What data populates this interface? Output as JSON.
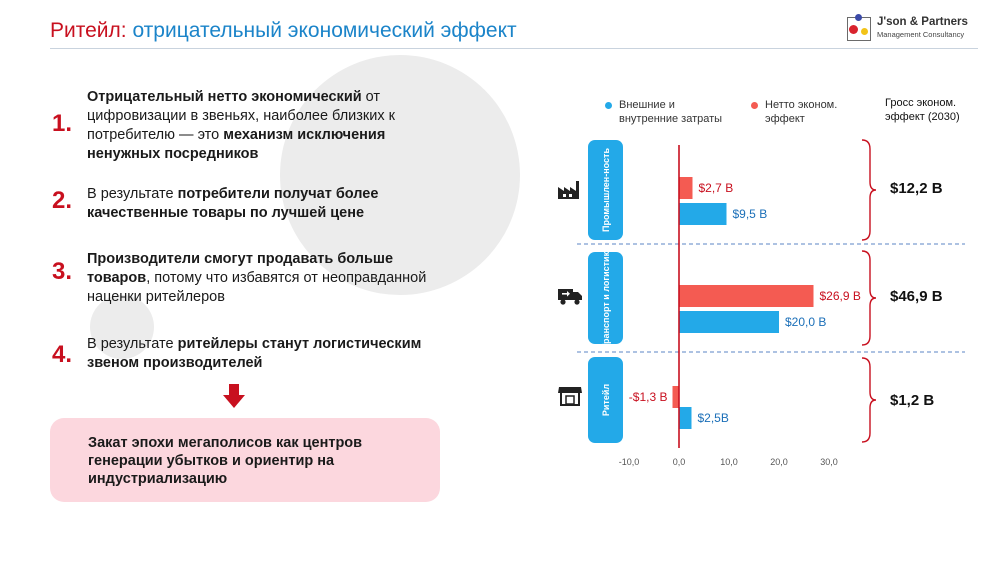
{
  "header": {
    "title_part1": "Ритейл:",
    "title_part2": "отрицательный экономический эффект",
    "logo_line1": "J'son & Partners",
    "logo_line2": "Management Consultancy"
  },
  "points": [
    {
      "num": "1.",
      "parts": [
        {
          "t": "Отрицательный нетто экономический",
          "b": true
        },
        {
          "t": " от цифровизации в звеньях, наиболее близких к потребителю — это ",
          "b": false
        },
        {
          "t": "механизм исключения ненужных посредников",
          "b": true
        }
      ]
    },
    {
      "num": "2.",
      "parts": [
        {
          "t": "В результате ",
          "b": false
        },
        {
          "t": "потребители получат более качественные товары по лучшей цене",
          "b": true
        }
      ]
    },
    {
      "num": "3.",
      "parts": [
        {
          "t": "Производители смогут продавать больше товаров",
          "b": true
        },
        {
          "t": ", потому что избавятся от неоправданной наценки ритейлеров",
          "b": false
        }
      ]
    },
    {
      "num": "4.",
      "parts": [
        {
          "t": "В результате ",
          "b": false
        },
        {
          "t": "ритейлеры станут логистическим звеном производителей",
          "b": true
        }
      ]
    }
  ],
  "conclusion": "Закат эпохи мегаполисов как центров генерации убытков и ориентир на индустриализацию",
  "legend": {
    "blue": "Внешние и внутренние затраты",
    "red": "Нетто эконом. эффект",
    "gross_header": "Гросс эконом. эффект (2030)"
  },
  "colors": {
    "accent_red": "#c8101f",
    "blue": "#23a9e8",
    "red_bar": "#f45b52",
    "pink": "#fcd7de"
  },
  "chart_data": {
    "type": "bar",
    "orientation": "horizontal",
    "categories": [
      "Промышлен-ность",
      "Транспорт и логистика",
      "Ритейл"
    ],
    "category_icons": [
      "factory-icon",
      "truck-icon",
      "store-icon"
    ],
    "series": [
      {
        "name": "Нетто эконом. эффект",
        "values": [
          2.7,
          26.9,
          -1.3
        ],
        "labels": [
          "$2,7 B",
          "$26,9 B",
          "-$1,3 B"
        ],
        "color": "#f45b52"
      },
      {
        "name": "Внешние и внутренние затраты",
        "values": [
          9.5,
          20.0,
          2.5
        ],
        "labels": [
          "$9,5 B",
          "$20,0 B",
          "$2,5B"
        ],
        "color": "#23a9e8"
      }
    ],
    "gross_totals": [
      "$12,2 B",
      "$46,9 B",
      "$1,2 B"
    ],
    "xticks": [
      "-10,0",
      "0,0",
      "10,0",
      "20,0",
      "30,0"
    ],
    "xlim": [
      -10,
      30
    ],
    "grid": false
  }
}
